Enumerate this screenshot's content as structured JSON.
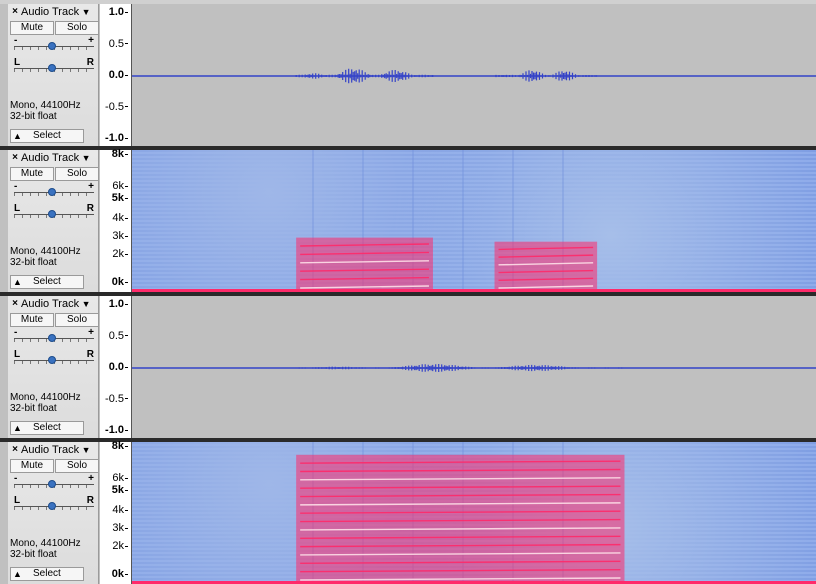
{
  "tracks": [
    {
      "kind": "waveform",
      "name": "Audio Track",
      "mute_label": "Mute",
      "solo_label": "Solo",
      "gain_minus": "-",
      "gain_plus": "+",
      "pan_left": "L",
      "pan_right": "R",
      "format_line1": "Mono, 44100Hz",
      "format_line2": "32-bit float",
      "select_label": "Select",
      "scale": [
        "1.0",
        "0.5",
        "0.0",
        "-0.5",
        "-1.0"
      ],
      "bursts": [
        {
          "start": 0.24,
          "end": 0.44,
          "amp": 0.12
        },
        {
          "start": 0.53,
          "end": 0.68,
          "amp": 0.1
        }
      ]
    },
    {
      "kind": "spectrogram",
      "name": "Audio Track",
      "mute_label": "Mute",
      "solo_label": "Solo",
      "gain_minus": "-",
      "gain_plus": "+",
      "pan_left": "L",
      "pan_right": "R",
      "format_line1": "Mono, 44100Hz",
      "format_line2": "32-bit float",
      "select_label": "Select",
      "scale": [
        "8k",
        "6k",
        "5k",
        "4k",
        "3k",
        "2k",
        "0k"
      ],
      "bursts": [
        {
          "start": 0.24,
          "end": 0.44,
          "amp": 0.4
        },
        {
          "start": 0.53,
          "end": 0.68,
          "amp": 0.37
        }
      ]
    },
    {
      "kind": "waveform",
      "name": "Audio Track",
      "mute_label": "Mute",
      "solo_label": "Solo",
      "gain_minus": "-",
      "gain_plus": "+",
      "pan_left": "L",
      "pan_right": "R",
      "format_line1": "Mono, 44100Hz",
      "format_line2": "32-bit float",
      "select_label": "Select",
      "scale": [
        "1.0",
        "0.5",
        "0.0",
        "-0.5",
        "-1.0"
      ],
      "bursts": [
        {
          "start": 0.24,
          "end": 0.72,
          "amp": 0.06
        }
      ]
    },
    {
      "kind": "spectrogram",
      "name": "Audio Track",
      "mute_label": "Mute",
      "solo_label": "Solo",
      "gain_minus": "-",
      "gain_plus": "+",
      "pan_left": "L",
      "pan_right": "R",
      "format_line1": "Mono, 44100Hz",
      "format_line2": "32-bit float",
      "select_label": "Select",
      "scale": [
        "8k",
        "6k",
        "5k",
        "4k",
        "3k",
        "2k",
        "0k"
      ],
      "bursts": [
        {
          "start": 0.24,
          "end": 0.72,
          "amp": 0.95
        }
      ]
    }
  ],
  "colors": {
    "waveform": "#3342c8",
    "spectrogram_hot": "#ff2a6a",
    "spectrogram_bg": "#8eabea"
  }
}
